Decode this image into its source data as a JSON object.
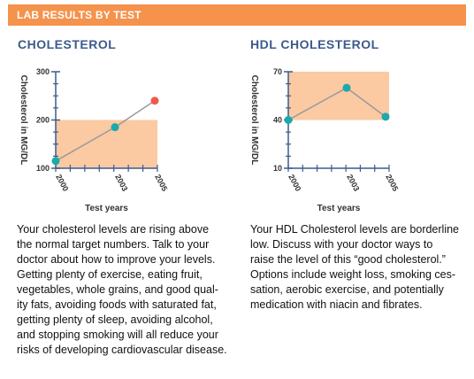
{
  "header": {
    "title": "LAB RESULTS  BY TEST"
  },
  "colors": {
    "banner": "#f5924c",
    "band": "#fbc9a2",
    "axis": "#3d5a8c",
    "line": "#999999",
    "point": "#1aa9ad",
    "point_high": "#f05a4a",
    "title": "#3d5a8c"
  },
  "chart_data": [
    {
      "type": "line",
      "title": "CHOLESTEROL",
      "xlabel": "Test years",
      "ylabel": "Cholesterol in MG/DL",
      "x": [
        "2000",
        "2003",
        "2005"
      ],
      "ylim": [
        100,
        300
      ],
      "yticks": [
        "100",
        "200",
        "300"
      ],
      "target_range": [
        100,
        200
      ],
      "series": [
        {
          "values": [
            115,
            185,
            240
          ]
        }
      ],
      "point_colors": [
        "#1aa9ad",
        "#1aa9ad",
        "#f05a4a"
      ],
      "grid": false
    },
    {
      "type": "line",
      "title": "HDL CHOLESTEROL",
      "xlabel": "Test years",
      "ylabel": "Cholesterol in MG/DL",
      "x": [
        "2000",
        "2003",
        "2005"
      ],
      "ylim": [
        10,
        70
      ],
      "yticks": [
        "10",
        "40",
        "70"
      ],
      "target_range": [
        40,
        70
      ],
      "series": [
        {
          "values": [
            40,
            60,
            42
          ]
        }
      ],
      "point_colors": [
        "#1aa9ad",
        "#1aa9ad",
        "#1aa9ad"
      ],
      "grid": false
    }
  ],
  "descriptions": [
    {
      "lines": [
        "Your cholesterol levels are rising above",
        "the normal target numbers. Talk to your",
        "doctor about how to improve your levels.",
        "Getting plenty of exercise, eating fruit,",
        "vegetables, whole grains, and good qual-",
        "ity fats, avoiding foods with saturated fat,",
        "getting plenty of sleep, avoiding alcohol,",
        "and stopping smoking will all reduce your",
        "risks of developing cardiovascular disease."
      ]
    },
    {
      "lines": [
        "Your HDL Cholesterol levels are borderline",
        "low. Discuss with your doctor ways to",
        "raise the level of this “good cholesterol.”",
        "Options include weight loss, smoking ces-",
        "sation, aerobic exercise, and potentially",
        "medication with niacin and fibrates."
      ]
    }
  ]
}
